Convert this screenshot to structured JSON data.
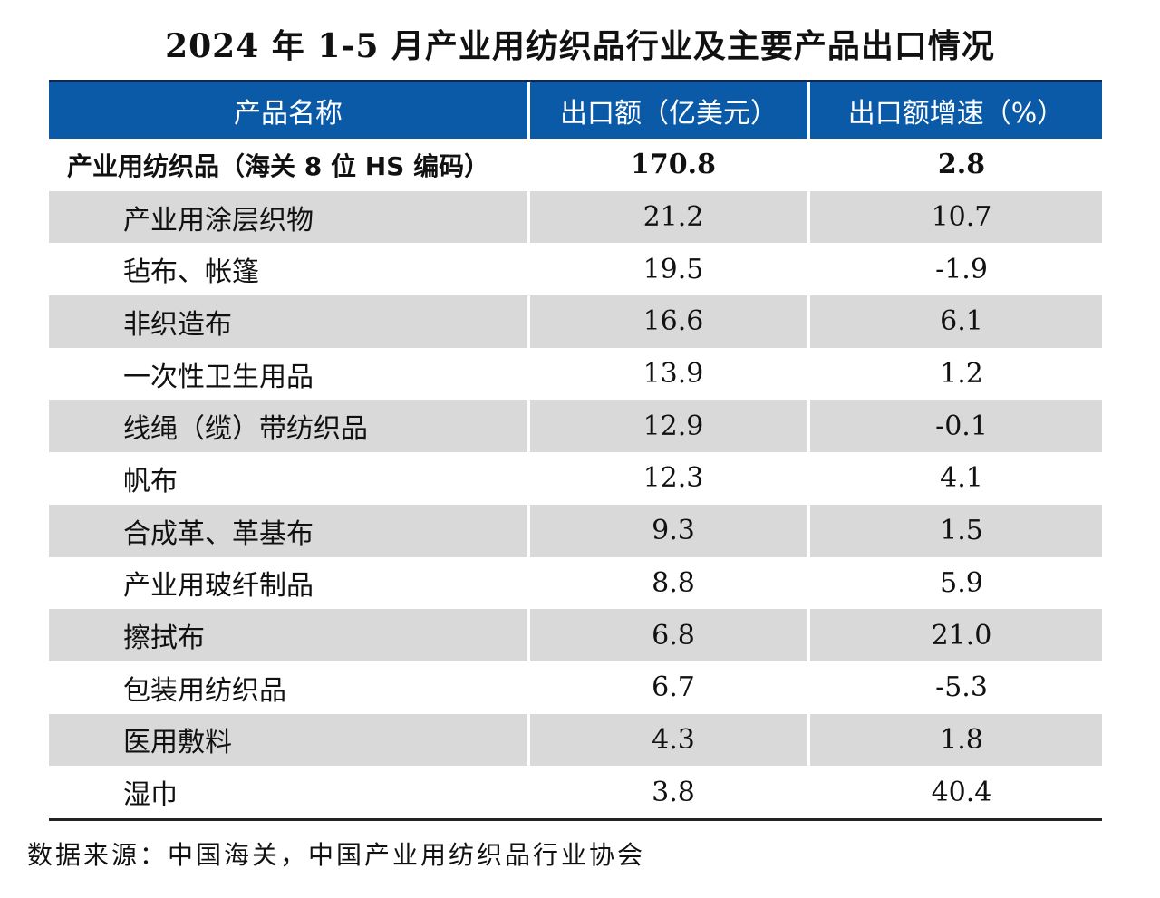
{
  "title": "2024 年 1-5 月产业用纺织品行业及主要产品出口情况",
  "columns": [
    "产品名称",
    "出口额（亿美元）",
    "出口额增速（%）"
  ],
  "total": {
    "name": "产业用纺织品（海关 8 位 HS 编码）",
    "export": "170.8",
    "growth": "2.8"
  },
  "rows": [
    {
      "name": "产业用涂层织物",
      "export": "21.2",
      "growth": "10.7"
    },
    {
      "name": "毡布、帐篷",
      "export": "19.5",
      "growth": "-1.9"
    },
    {
      "name": "非织造布",
      "export": "16.6",
      "growth": "6.1"
    },
    {
      "name": "一次性卫生用品",
      "export": "13.9",
      "growth": "1.2"
    },
    {
      "name": "线绳（缆）带纺织品",
      "export": "12.9",
      "growth": "-0.1"
    },
    {
      "name": "帆布",
      "export": "12.3",
      "growth": "4.1"
    },
    {
      "name": "合成革、革基布",
      "export": "9.3",
      "growth": "1.5"
    },
    {
      "name": "产业用玻纤制品",
      "export": "8.8",
      "growth": "5.9"
    },
    {
      "name": "擦拭布",
      "export": "6.8",
      "growth": "21.0"
    },
    {
      "name": "包装用纺织品",
      "export": "6.7",
      "growth": "-5.3"
    },
    {
      "name": "医用敷料",
      "export": "4.3",
      "growth": "1.8"
    },
    {
      "name": "湿巾",
      "export": "3.8",
      "growth": "40.4"
    }
  ],
  "source": "数据来源：中国海关，中国产业用纺织品行业协会",
  "colors": {
    "header_bg": "#0a5aa8",
    "row_shade": "#d9d9d9"
  }
}
